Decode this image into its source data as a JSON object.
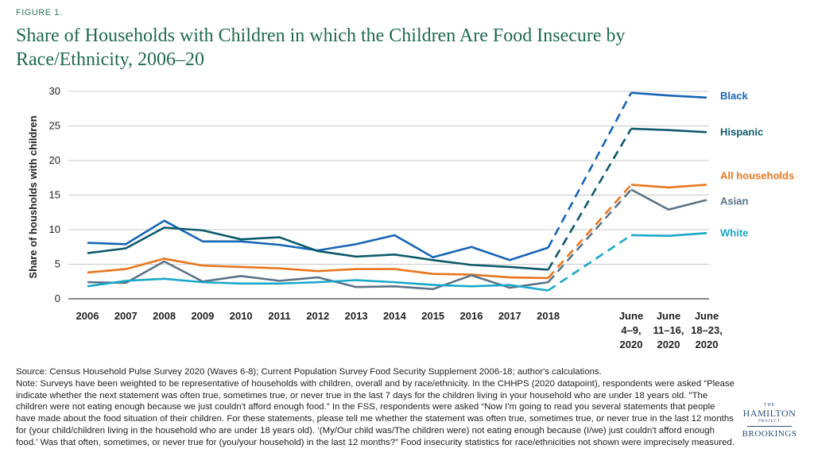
{
  "figure_label": "FIGURE 1.",
  "title": "Share of Households with Children in which the Children Are Food Insecure by Race/Ethnicity, 2006–20",
  "footer": {
    "source": "Source: Census Household Pulse Survey 2020 (Waves 6-8); Current Population Survey Food Security Supplement 2006-18; author's calculations.",
    "note": "Note: Surveys have been weighted to be representative of households with children, overall and by race/ethnicity. In the CHHPS (2020 datapoint), respondents were asked “Please indicate whether the next statement was often true, sometimes true, or never true in the last 7 days for the children living in your household who are under 18 years old. \"The children were not eating enough because we just couldn't afford enough food.\" In the FSS, respondents were asked “Now I'm going to read you several statements that people have made about the food situation of their children. For these statements, please tell me whether the statement was often true, sometimes true, or never true in the last 12 months for (your child/children living in the household who are under 18 years old). ‘(My/Our child was/The children were) not eating enough because (I/we) just couldn't afford enough food.’ Was that often, sometimes, or never true for (you/your household) in the last 12 months?” Food insecurity statistics for race/ethnicities not shown were imprecisely measured."
  },
  "logo": {
    "the": "THE",
    "hamilton": "HAMILTON",
    "project": "PROJECT",
    "brookings": "BROOKINGS"
  },
  "chart_data": {
    "type": "line",
    "title": "Share of Households with Children in which the Children Are Food Insecure by Race/Ethnicity, 2006–20",
    "xlabel": "",
    "ylabel": "Share of housholds with children",
    "ylim": [
      0,
      30
    ],
    "yticks": [
      0,
      5,
      10,
      15,
      20,
      25,
      30
    ],
    "grid": "horizontal",
    "legend": "labels at right end of lines",
    "annual_categories": [
      "2006",
      "2007",
      "2008",
      "2009",
      "2010",
      "2011",
      "2012",
      "2013",
      "2014",
      "2015",
      "2016",
      "2017",
      "2018"
    ],
    "survey_categories": [
      [
        "June",
        "4–9,",
        "2020"
      ],
      [
        "June",
        "11–16,",
        "2020"
      ],
      [
        "June",
        "18–23,",
        "2020"
      ]
    ],
    "gap_style": "dashed line connects 2018 to first 2020 value",
    "series": [
      {
        "name": "Black",
        "color": "#1565b5",
        "annual": [
          8.1,
          7.9,
          11.3,
          8.3,
          8.3,
          7.8,
          7.0,
          7.9,
          9.2,
          6.0,
          7.5,
          5.6,
          7.4
        ],
        "survey": [
          29.8,
          29.4,
          29.1
        ]
      },
      {
        "name": "Hispanic",
        "color": "#0d5a6a",
        "annual": [
          6.6,
          7.3,
          10.3,
          9.9,
          8.6,
          8.9,
          6.9,
          6.1,
          6.4,
          5.6,
          4.9,
          4.6,
          4.2
        ],
        "survey": [
          24.6,
          24.4,
          24.1
        ]
      },
      {
        "name": "All households",
        "color": "#e8761c",
        "annual": [
          3.8,
          4.3,
          5.8,
          4.8,
          4.6,
          4.4,
          4.0,
          4.3,
          4.3,
          3.6,
          3.5,
          3.1,
          3.0
        ],
        "survey": [
          16.5,
          16.1,
          16.5
        ]
      },
      {
        "name": "Asian",
        "color": "#5a7386",
        "annual": [
          2.4,
          2.3,
          5.4,
          2.5,
          3.3,
          2.6,
          3.1,
          1.7,
          1.8,
          1.4,
          3.4,
          1.6,
          2.4
        ],
        "survey": [
          15.8,
          12.9,
          14.3
        ]
      },
      {
        "name": "White",
        "color": "#1aa8c8",
        "annual": [
          1.8,
          2.6,
          2.9,
          2.4,
          2.2,
          2.2,
          2.4,
          2.7,
          2.4,
          2.0,
          1.8,
          2.0,
          1.2
        ],
        "survey": [
          9.2,
          9.1,
          9.5
        ]
      }
    ]
  }
}
